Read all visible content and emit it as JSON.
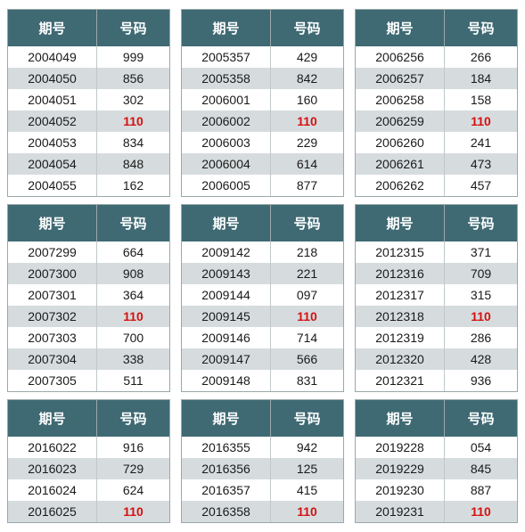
{
  "headers": {
    "col1": "期号",
    "col2": "号码"
  },
  "colors": {
    "header_bg": "#3f6a74",
    "header_fg": "#ffffff",
    "row_odd_bg": "#ffffff",
    "row_even_bg": "#d6dcde",
    "border": "#9aa8ab",
    "highlight_fg": "#d41111",
    "text_fg": "#1a1a1a"
  },
  "layout": {
    "cols": 3,
    "rows": 3,
    "col1_width_pct": 55,
    "col2_width_pct": 45
  },
  "typography": {
    "header_fontsize": 15,
    "cell_fontsize": 14
  },
  "blocks": [
    {
      "rows": [
        {
          "issue": "2004049",
          "num": "999",
          "hl": false
        },
        {
          "issue": "2004050",
          "num": "856",
          "hl": false
        },
        {
          "issue": "2004051",
          "num": "302",
          "hl": false
        },
        {
          "issue": "2004052",
          "num": "110",
          "hl": true
        },
        {
          "issue": "2004053",
          "num": "834",
          "hl": false
        },
        {
          "issue": "2004054",
          "num": "848",
          "hl": false
        },
        {
          "issue": "2004055",
          "num": "162",
          "hl": false
        }
      ]
    },
    {
      "rows": [
        {
          "issue": "2005357",
          "num": "429",
          "hl": false
        },
        {
          "issue": "2005358",
          "num": "842",
          "hl": false
        },
        {
          "issue": "2006001",
          "num": "160",
          "hl": false
        },
        {
          "issue": "2006002",
          "num": "110",
          "hl": true
        },
        {
          "issue": "2006003",
          "num": "229",
          "hl": false
        },
        {
          "issue": "2006004",
          "num": "614",
          "hl": false
        },
        {
          "issue": "2006005",
          "num": "877",
          "hl": false
        }
      ]
    },
    {
      "rows": [
        {
          "issue": "2006256",
          "num": "266",
          "hl": false
        },
        {
          "issue": "2006257",
          "num": "184",
          "hl": false
        },
        {
          "issue": "2006258",
          "num": "158",
          "hl": false
        },
        {
          "issue": "2006259",
          "num": "110",
          "hl": true
        },
        {
          "issue": "2006260",
          "num": "241",
          "hl": false
        },
        {
          "issue": "2006261",
          "num": "473",
          "hl": false
        },
        {
          "issue": "2006262",
          "num": "457",
          "hl": false
        }
      ]
    },
    {
      "rows": [
        {
          "issue": "2007299",
          "num": "664",
          "hl": false
        },
        {
          "issue": "2007300",
          "num": "908",
          "hl": false
        },
        {
          "issue": "2007301",
          "num": "364",
          "hl": false
        },
        {
          "issue": "2007302",
          "num": "110",
          "hl": true
        },
        {
          "issue": "2007303",
          "num": "700",
          "hl": false
        },
        {
          "issue": "2007304",
          "num": "338",
          "hl": false
        },
        {
          "issue": "2007305",
          "num": "511",
          "hl": false
        }
      ]
    },
    {
      "rows": [
        {
          "issue": "2009142",
          "num": "218",
          "hl": false
        },
        {
          "issue": "2009143",
          "num": "221",
          "hl": false
        },
        {
          "issue": "2009144",
          "num": "097",
          "hl": false
        },
        {
          "issue": "2009145",
          "num": "110",
          "hl": true
        },
        {
          "issue": "2009146",
          "num": "714",
          "hl": false
        },
        {
          "issue": "2009147",
          "num": "566",
          "hl": false
        },
        {
          "issue": "2009148",
          "num": "831",
          "hl": false
        }
      ]
    },
    {
      "rows": [
        {
          "issue": "2012315",
          "num": "371",
          "hl": false
        },
        {
          "issue": "2012316",
          "num": "709",
          "hl": false
        },
        {
          "issue": "2012317",
          "num": "315",
          "hl": false
        },
        {
          "issue": "2012318",
          "num": "110",
          "hl": true
        },
        {
          "issue": "2012319",
          "num": "286",
          "hl": false
        },
        {
          "issue": "2012320",
          "num": "428",
          "hl": false
        },
        {
          "issue": "2012321",
          "num": "936",
          "hl": false
        }
      ]
    },
    {
      "rows": [
        {
          "issue": "2016022",
          "num": "916",
          "hl": false
        },
        {
          "issue": "2016023",
          "num": "729",
          "hl": false
        },
        {
          "issue": "2016024",
          "num": "624",
          "hl": false
        },
        {
          "issue": "2016025",
          "num": "110",
          "hl": true
        }
      ]
    },
    {
      "rows": [
        {
          "issue": "2016355",
          "num": "942",
          "hl": false
        },
        {
          "issue": "2016356",
          "num": "125",
          "hl": false
        },
        {
          "issue": "2016357",
          "num": "415",
          "hl": false
        },
        {
          "issue": "2016358",
          "num": "110",
          "hl": true
        }
      ]
    },
    {
      "rows": [
        {
          "issue": "2019228",
          "num": "054",
          "hl": false
        },
        {
          "issue": "2019229",
          "num": "845",
          "hl": false
        },
        {
          "issue": "2019230",
          "num": "887",
          "hl": false
        },
        {
          "issue": "2019231",
          "num": "110",
          "hl": true
        }
      ]
    }
  ]
}
